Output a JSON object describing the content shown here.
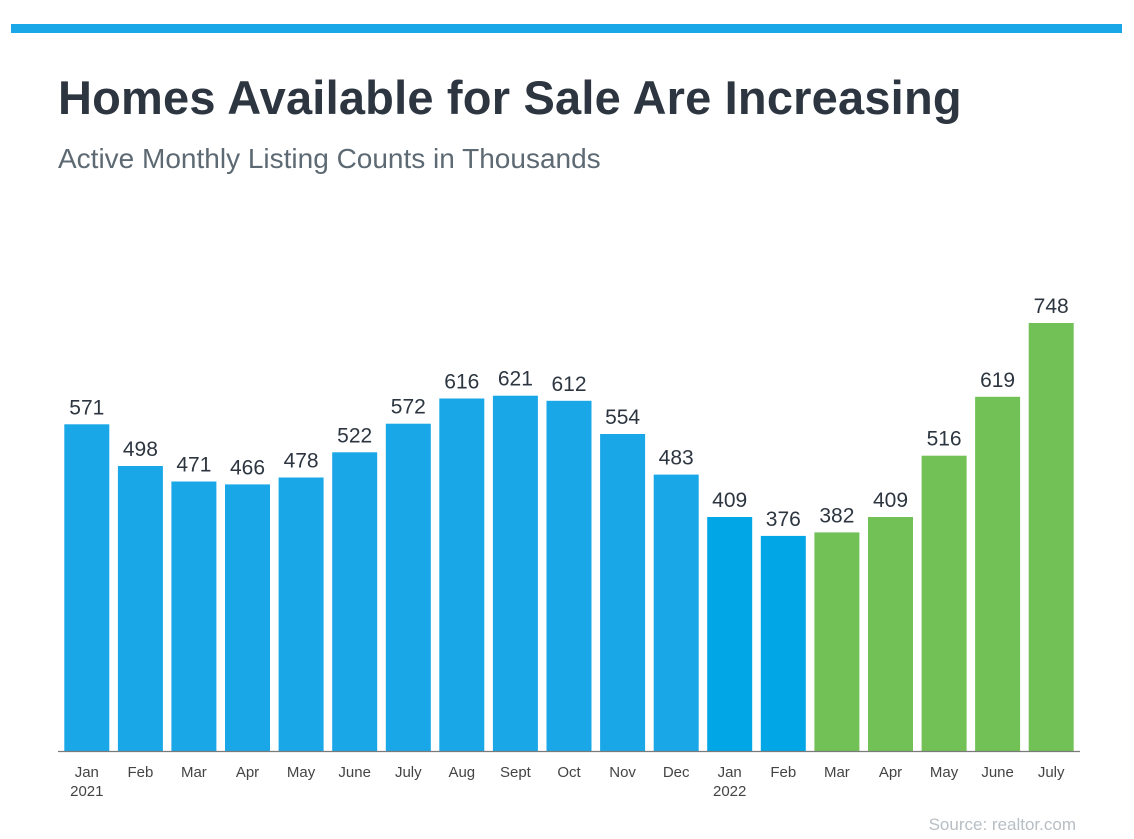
{
  "header": {
    "title": "Homes Available for Sale Are Increasing",
    "subtitle": "Active Monthly Listing Counts in Thousands"
  },
  "footer": {
    "source": "Source: realtor.com"
  },
  "colors": {
    "accent_bar": "#1aa7e8",
    "blue": "#1aa7e8",
    "dark_blue": "#00a6e6",
    "green": "#72c157",
    "text": "#2d3640",
    "axis": "#444444"
  },
  "chart_data": {
    "type": "bar",
    "title": "Homes Available for Sale Are Increasing",
    "subtitle": "Active Monthly Listing Counts in Thousands",
    "categories": [
      "Jan",
      "Feb",
      "Mar",
      "Apr",
      "May",
      "June",
      "July",
      "Aug",
      "Sept",
      "Oct",
      "Nov",
      "Dec",
      "Jan",
      "Feb",
      "Mar",
      "Apr",
      "May",
      "June",
      "July"
    ],
    "year_labels": [
      "2021",
      "",
      "",
      "",
      "",
      "",
      "",
      "",
      "",
      "",
      "",
      "",
      "2022",
      "",
      "",
      "",
      "",
      "",
      ""
    ],
    "values": [
      571,
      498,
      471,
      466,
      478,
      522,
      572,
      616,
      621,
      612,
      554,
      483,
      409,
      376,
      382,
      409,
      516,
      619,
      748
    ],
    "bar_colors": [
      "blue",
      "blue",
      "blue",
      "blue",
      "blue",
      "blue",
      "blue",
      "blue",
      "blue",
      "blue",
      "blue",
      "blue",
      "dark_blue",
      "dark_blue",
      "green",
      "green",
      "green",
      "green",
      "green"
    ],
    "ylim": [
      0,
      748
    ],
    "grid": false,
    "legend": false,
    "data_labels": true,
    "xlabel": "",
    "ylabel": ""
  }
}
